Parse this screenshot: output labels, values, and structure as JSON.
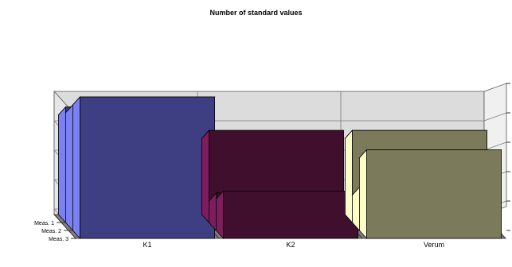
{
  "chart_data": {
    "type": "bar",
    "subtype": "3d-ribbon",
    "title": "Number of standard values",
    "categories": [
      "K1",
      "K2",
      "Verum"
    ],
    "series_labels": [
      "Meas. 1",
      "Meas. 2",
      "Meas. 3"
    ],
    "series": [
      {
        "name": "Meas. 1",
        "values": [
          36,
          32,
          32
        ]
      },
      {
        "name": "Meas. 2",
        "values": [
          35,
          20,
          21
        ]
      },
      {
        "name": "Meas. 3",
        "values": [
          35,
          19,
          26
        ]
      }
    ],
    "ylim": [
      15,
      40
    ],
    "grid": true,
    "legend": "none",
    "colors": {
      "K1": {
        "front": "#3d3f82",
        "side": "#7b80f3",
        "top": "#5e63c9"
      },
      "K2": {
        "front": "#3f0f2d",
        "side": "#7e1d5d",
        "top": "#5d1645"
      },
      "Verum": {
        "front": "#7b7b5b",
        "side": "#fdfdc8",
        "top": "#b5b58e"
      },
      "wall": "#dcdcdc",
      "floor": "#7f7f7f",
      "grid": "#7a7a7a"
    }
  }
}
